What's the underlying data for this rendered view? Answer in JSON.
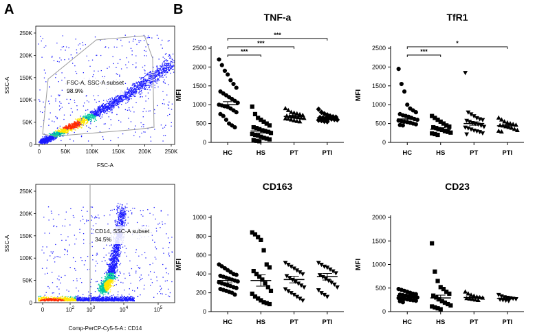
{
  "panel_labels": {
    "a": "A",
    "b": "B"
  },
  "colors": {
    "marker": "#000000",
    "density_low": "#1a1aff",
    "density_mid": "#00c8a0",
    "density_high": "#ffe600",
    "density_peak": "#ff2a00",
    "gate": "#999999"
  },
  "chart_data": [
    {
      "type": "scatter",
      "name": "flow-fsc-ssc",
      "title": "",
      "xlabel": "FSC-A",
      "ylabel": "SSC-A",
      "xticks": [
        "0",
        "50K",
        "100K",
        "150K",
        "200K",
        "250K"
      ],
      "yticks": [
        "0",
        "50K",
        "100K",
        "150K",
        "200K",
        "250K"
      ],
      "xlim": [
        0,
        262144
      ],
      "ylim": [
        0,
        262144
      ],
      "gate_label": "FSC-A, SSC-A subset",
      "gate_percent": "98.9%"
    },
    {
      "type": "scatter",
      "name": "flow-cd14-ssc",
      "title": "",
      "xlabel": "Comp-PerCP-Cy5-5-A:: CD14",
      "ylabel": "SSC-A",
      "xticks": [
        "0",
        "10",
        "10",
        "10",
        "10"
      ],
      "xtick_exponents": [
        "",
        "2",
        "3",
        "4",
        "5"
      ],
      "yticks": [
        "0",
        "50K",
        "100K",
        "150K",
        "200K",
        "250K"
      ],
      "ylim": [
        0,
        262144
      ],
      "gate_label": "CD14, SSC-A subset",
      "gate_percent": "34.5%"
    },
    {
      "type": "scatter",
      "title": "TNF-a",
      "ylabel": "MFI",
      "ylim": [
        0,
        2500
      ],
      "yticks": [
        "0",
        "500",
        "1000",
        "1500",
        "2000",
        "2500"
      ],
      "categories": [
        "HC",
        "HS",
        "PT",
        "PTI"
      ],
      "markers": [
        "circle",
        "square",
        "triangle",
        "diamond"
      ],
      "means": [
        1000,
        300,
        690,
        650
      ],
      "sems": [
        80,
        50,
        30,
        25
      ],
      "points": [
        [
          2200,
          2050,
          1900,
          1800,
          1650,
          1550,
          1450,
          1350,
          1300,
          1250,
          1200,
          1150,
          1100,
          1050,
          1000,
          980,
          960,
          940,
          900,
          850,
          800,
          750,
          700,
          600,
          500,
          450,
          400
        ],
        [
          950,
          750,
          650,
          600,
          550,
          500,
          450,
          400,
          380,
          350,
          320,
          300,
          280,
          250,
          220,
          200,
          180,
          150,
          120,
          100,
          80,
          60,
          40,
          30
        ],
        [
          900,
          850,
          800,
          780,
          760,
          740,
          720,
          700,
          690,
          680,
          670,
          660,
          650,
          640,
          630,
          620,
          600,
          580,
          560,
          550
        ],
        [
          880,
          800,
          760,
          730,
          700,
          680,
          670,
          660,
          650,
          640,
          630,
          620,
          610,
          600,
          590,
          580,
          560,
          550
        ]
      ],
      "significance": [
        {
          "from": "HC",
          "to": "HS",
          "label": "***"
        },
        {
          "from": "HC",
          "to": "PT",
          "label": "***"
        },
        {
          "from": "HC",
          "to": "PTI",
          "label": "***"
        }
      ]
    },
    {
      "type": "scatter",
      "title": "TfR1",
      "ylabel": "MFI",
      "ylim": [
        0,
        2500
      ],
      "yticks": [
        "0",
        "500",
        "1000",
        "1500",
        "2000",
        "2500"
      ],
      "categories": [
        "HC",
        "HS",
        "PT",
        "PTI"
      ],
      "markers": [
        "circle",
        "square",
        "triangle-down",
        "triangle"
      ],
      "means": [
        620,
        350,
        500,
        440
      ],
      "sems": [
        70,
        40,
        45,
        30
      ],
      "points": [
        [
          1950,
          1550,
          1350,
          1000,
          900,
          850,
          800,
          750,
          720,
          700,
          680,
          650,
          620,
          600,
          580,
          560,
          550,
          540,
          520,
          500,
          480,
          460,
          450
        ],
        [
          700,
          650,
          600,
          550,
          500,
          450,
          420,
          400,
          380,
          350,
          330,
          300,
          280,
          260,
          240,
          220,
          200
        ],
        [
          1850,
          800,
          750,
          700,
          650,
          620,
          600,
          580,
          550,
          520,
          500,
          480,
          450,
          420,
          400,
          380,
          350,
          320,
          300,
          280,
          250,
          220
        ],
        [
          650,
          600,
          550,
          520,
          500,
          480,
          460,
          450,
          440,
          420,
          400,
          380,
          350,
          320,
          300,
          280
        ]
      ],
      "significance": [
        {
          "from": "HC",
          "to": "HS",
          "label": "***"
        },
        {
          "from": "HC",
          "to": "PTI",
          "label": "*"
        }
      ]
    },
    {
      "type": "scatter",
      "title": "CD163",
      "ylabel": "MFI",
      "ylim": [
        0,
        1000
      ],
      "yticks": [
        "0",
        "200",
        "400",
        "600",
        "800",
        "1000"
      ],
      "categories": [
        "HC",
        "HS",
        "PT",
        "PTI"
      ],
      "markers": [
        "circle",
        "square",
        "triangle-down",
        "triangle-down"
      ],
      "means": [
        330,
        330,
        340,
        370
      ],
      "sems": [
        25,
        60,
        35,
        35
      ],
      "points": [
        [
          500,
          480,
          460,
          440,
          420,
          400,
          390,
          380,
          370,
          360,
          350,
          340,
          330,
          320,
          310,
          300,
          290,
          280,
          270,
          260,
          250,
          240,
          230,
          220,
          210,
          200,
          180
        ],
        [
          840,
          820,
          790,
          760,
          650,
          500,
          470,
          430,
          400,
          370,
          340,
          300,
          260,
          220,
          190,
          160,
          140,
          120,
          100,
          90,
          80
        ],
        [
          520,
          500,
          480,
          460,
          440,
          420,
          400,
          380,
          360,
          340,
          320,
          300,
          280,
          260,
          240,
          220,
          200,
          180,
          160,
          140,
          120
        ],
        [
          520,
          500,
          480,
          470,
          450,
          430,
          410,
          390,
          370,
          350,
          330,
          310,
          290,
          260,
          230,
          200,
          180,
          160
        ]
      ],
      "significance": []
    },
    {
      "type": "scatter",
      "title": "CD23",
      "ylabel": "MFI",
      "ylim": [
        0,
        2000
      ],
      "yticks": [
        "0",
        "500",
        "1000",
        "1500",
        "2000"
      ],
      "categories": [
        "HC",
        "HS",
        "PT",
        "PTI"
      ],
      "markers": [
        "circle",
        "square",
        "triangle",
        "triangle-down"
      ],
      "means": [
        340,
        290,
        300,
        280
      ],
      "sems": [
        25,
        60,
        20,
        15
      ],
      "points": [
        [
          480,
          460,
          440,
          420,
          400,
          380,
          370,
          360,
          350,
          340,
          330,
          320,
          310,
          300,
          290,
          280,
          270,
          260,
          250,
          240,
          230,
          220,
          200
        ],
        [
          1450,
          850,
          650,
          520,
          480,
          420,
          380,
          340,
          300,
          260,
          220,
          190,
          160,
          130,
          110,
          90,
          70,
          50
        ],
        [
          420,
          380,
          350,
          330,
          310,
          300,
          290,
          280,
          270,
          260,
          250,
          240
        ],
        [
          360,
          330,
          310,
          300,
          290,
          280,
          270,
          260,
          250,
          240,
          230
        ]
      ],
      "significance": []
    }
  ]
}
